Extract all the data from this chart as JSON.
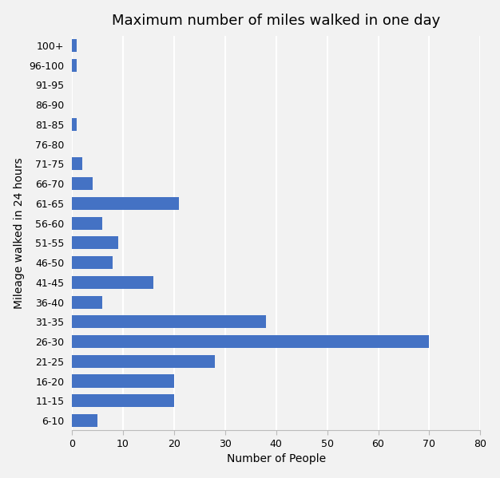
{
  "title": "Maximum number of miles walked in one day",
  "xlabel": "Number of People",
  "ylabel": "Mileage walked in 24 hours",
  "categories": [
    "6-10",
    "11-15",
    "16-20",
    "21-25",
    "26-30",
    "31-35",
    "36-40",
    "41-45",
    "46-50",
    "51-55",
    "56-60",
    "61-65",
    "66-70",
    "71-75",
    "76-80",
    "81-85",
    "86-90",
    "91-95",
    "96-100",
    "100+"
  ],
  "values": [
    5,
    20,
    20,
    28,
    70,
    38,
    6,
    16,
    8,
    9,
    6,
    21,
    4,
    2,
    0,
    1,
    0,
    0,
    1,
    1
  ],
  "bar_color": "#4472C4",
  "xlim": [
    0,
    80
  ],
  "xticks": [
    0,
    10,
    20,
    30,
    40,
    50,
    60,
    70,
    80
  ],
  "background_color": "#F2F2F2",
  "title_fontsize": 13,
  "label_fontsize": 10,
  "tick_fontsize": 9,
  "bar_height": 0.65,
  "grid_color": "#FFFFFF",
  "grid_linewidth": 1.5
}
